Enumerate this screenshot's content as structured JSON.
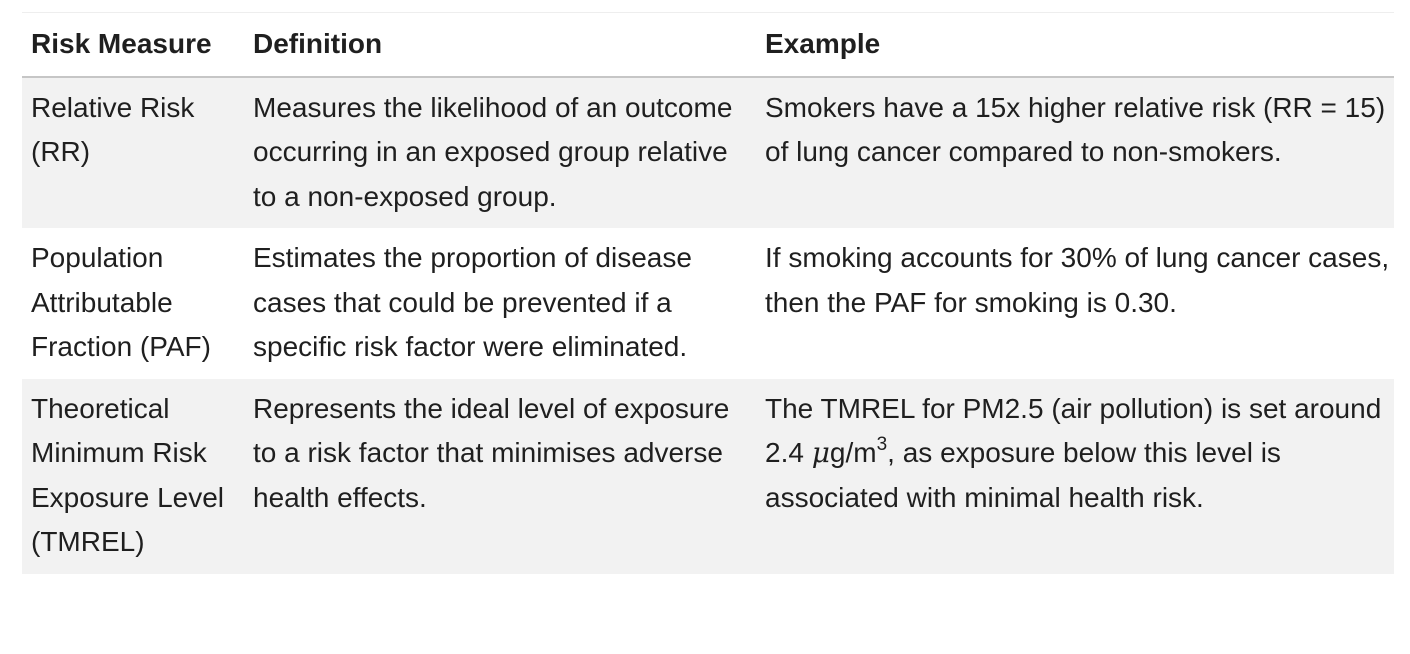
{
  "table": {
    "headers": [
      "Risk Measure",
      "Definition",
      "Example"
    ],
    "rows": [
      {
        "measure": "Relative Risk (RR)",
        "definition": "Measures the likelihood of an outcome occurring in an exposed group relative to a non-exposed group.",
        "example": "Smokers have a 15x higher relative risk (RR = 15) of lung cancer compared to non-smokers."
      },
      {
        "measure": "Population Attributable Fraction (PAF)",
        "definition": "Estimates the proportion of disease cases that could be prevented if a specific risk factor were eliminated.",
        "example": "If smoking accounts for 30% of lung cancer cases, then the PAF for smoking is 0.30."
      },
      {
        "measure": "Theoretical Minimum Risk Exposure Level (TMREL)",
        "definition": "Represents the ideal level of exposure to a risk factor that minimises adverse health effects.",
        "example_before": "The TMREL for PM2.5 (air pollution) is set around 2.4 ",
        "example_mu": "μ",
        "example_unit": "g/m",
        "example_sup": "3",
        "example_after": ", as exposure below this level is associated with minimal health risk."
      }
    ]
  }
}
